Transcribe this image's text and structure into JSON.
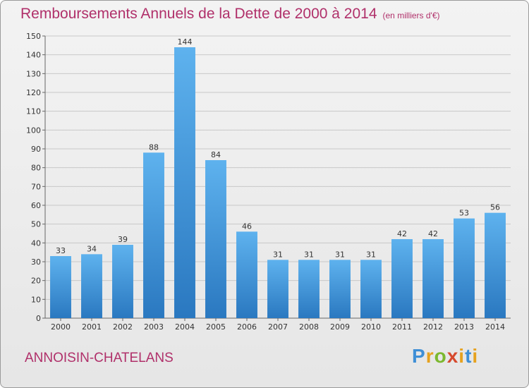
{
  "chart_data": {
    "type": "bar",
    "title": "Remboursements Annuels de la Dette de 2000 à 2014",
    "subtitle": "(en milliers d'€)",
    "categories": [
      "2000",
      "2001",
      "2002",
      "2003",
      "2004",
      "2005",
      "2006",
      "2007",
      "2008",
      "2009",
      "2010",
      "2011",
      "2012",
      "2013",
      "2014"
    ],
    "values": [
      33,
      34,
      39,
      88,
      144,
      84,
      46,
      31,
      31,
      31,
      31,
      42,
      42,
      53,
      56
    ],
    "ylim": [
      0,
      150
    ],
    "yticks": [
      0,
      10,
      20,
      30,
      40,
      50,
      60,
      70,
      80,
      90,
      100,
      110,
      120,
      130,
      140,
      150
    ],
    "grid": true,
    "bar_color": "#3d8fd4"
  },
  "commune": "ANNOISIN-CHATELANS",
  "logo": {
    "p": "P",
    "r": "r",
    "o": "o",
    "x": "x",
    "i": "i",
    "t": "t",
    "i2": "i"
  }
}
